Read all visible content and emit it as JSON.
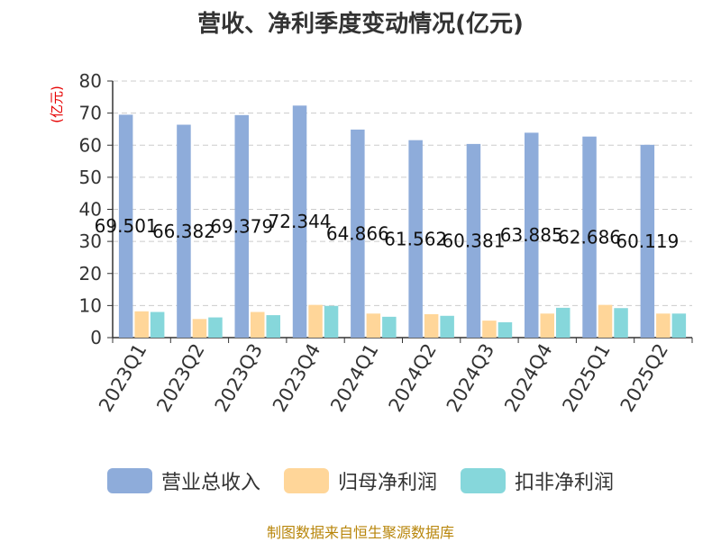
{
  "chart_data": {
    "type": "bar",
    "title": "营收、净利季度变动情况(亿元)",
    "ylabel": "(亿元)",
    "xlabel": "",
    "ylim": [
      0,
      80
    ],
    "yticks": [
      0,
      10,
      20,
      30,
      40,
      50,
      60,
      70,
      80
    ],
    "grid": true,
    "legend_position": "bottom",
    "categories": [
      "2023Q1",
      "2023Q2",
      "2023Q3",
      "2023Q4",
      "2024Q1",
      "2024Q2",
      "2024Q3",
      "2024Q4",
      "2025Q1",
      "2025Q2"
    ],
    "series": [
      {
        "name": "营业总收入",
        "color": "#8eacda",
        "values": [
          69.501,
          66.382,
          69.379,
          72.344,
          64.866,
          61.562,
          60.381,
          63.885,
          62.686,
          60.119
        ],
        "show_labels": true
      },
      {
        "name": "归母净利润",
        "color": "#ffd699",
        "values": [
          8.2,
          5.8,
          8.0,
          10.2,
          7.5,
          7.3,
          5.3,
          7.5,
          10.2,
          7.5
        ],
        "show_labels": false
      },
      {
        "name": "扣非净利润",
        "color": "#86d7db",
        "values": [
          8.0,
          6.3,
          7.0,
          9.9,
          6.5,
          6.8,
          4.8,
          9.3,
          9.2,
          7.5
        ],
        "show_labels": false
      }
    ]
  },
  "source_text": "制图数据来自恒生聚源数据库",
  "colors": {
    "ylabel": "#e60000",
    "source": "#b8860b",
    "axis": "#333333",
    "grid": "#cccccc"
  }
}
